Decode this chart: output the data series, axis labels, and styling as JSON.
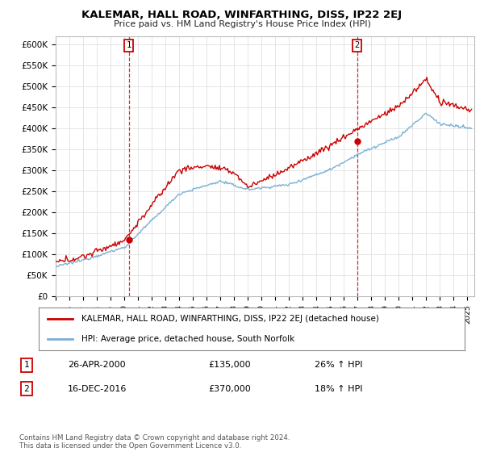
{
  "title": "KALEMAR, HALL ROAD, WINFARTHING, DISS, IP22 2EJ",
  "subtitle": "Price paid vs. HM Land Registry's House Price Index (HPI)",
  "ylim": [
    0,
    620000
  ],
  "xlim_start": 1995.0,
  "xlim_end": 2025.5,
  "hpi_color": "#7ab0d4",
  "price_color": "#cc0000",
  "marker1_x": 2000.32,
  "marker1_y": 135000,
  "marker2_x": 2016.96,
  "marker2_y": 370000,
  "legend_line1": "KALEMAR, HALL ROAD, WINFARTHING, DISS, IP22 2EJ (detached house)",
  "legend_line2": "HPI: Average price, detached house, South Norfolk",
  "annotation1_num": "1",
  "annotation1_date": "26-APR-2000",
  "annotation1_price": "£135,000",
  "annotation1_hpi": "26% ↑ HPI",
  "annotation2_num": "2",
  "annotation2_date": "16-DEC-2016",
  "annotation2_price": "£370,000",
  "annotation2_hpi": "18% ↑ HPI",
  "footer": "Contains HM Land Registry data © Crown copyright and database right 2024.\nThis data is licensed under the Open Government Licence v3.0.",
  "grid_color": "#e0e0e0",
  "background_color": "#ffffff"
}
